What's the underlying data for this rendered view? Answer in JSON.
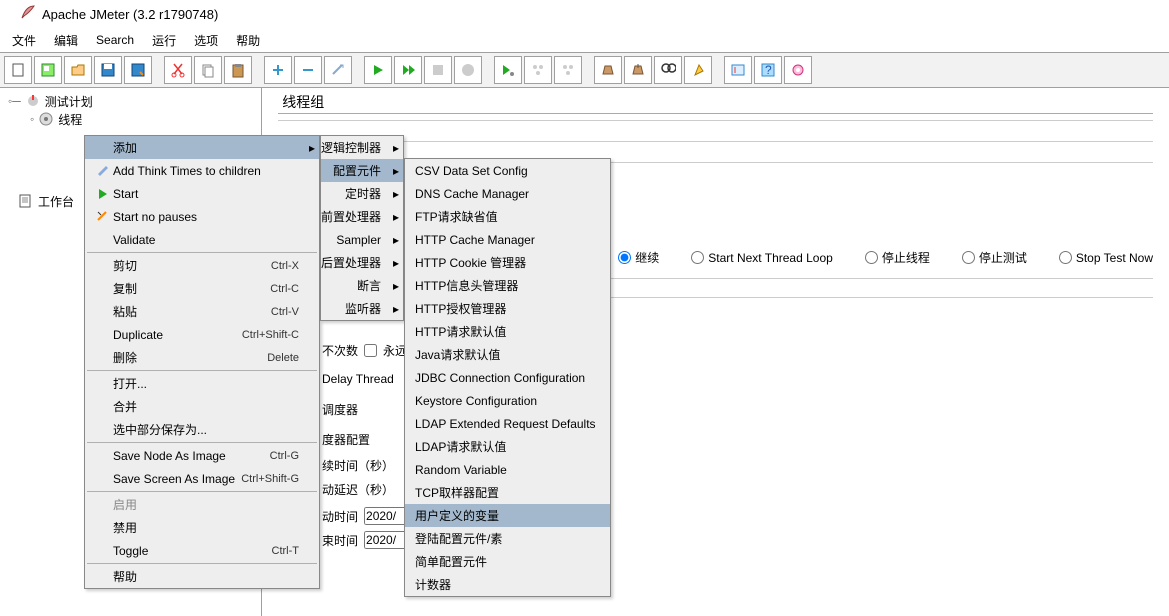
{
  "title": "Apache JMeter (3.2 r1790748)",
  "menubar": [
    "文件",
    "编辑",
    "Search",
    "运行",
    "选项",
    "帮助"
  ],
  "tree": {
    "root": "测试计划",
    "thread": "线程",
    "workbench": "工作台"
  },
  "panel": {
    "title": "线程组",
    "radios": [
      "继续",
      "Start Next Thread Loop",
      "停止线程",
      "停止测试",
      "Stop Test Now"
    ],
    "delayThread": "Delay Thread",
    "scheduler": "调度器",
    "schedCfg": "度器配置",
    "durSec": "续时间（秒）",
    "delaySec": "动延迟（秒）",
    "startTime": "动时间",
    "endTime": "束时间",
    "loopCount": "不次数",
    "loopForever": "永远",
    "timeVal": "2020/"
  },
  "ctx1": {
    "add": "添加",
    "addThink": "Add Think Times to children",
    "start": "Start",
    "startNoPause": "Start no pauses",
    "validate": "Validate",
    "cut": "剪切",
    "cutK": "Ctrl-X",
    "copy": "复制",
    "copyK": "Ctrl-C",
    "paste": "粘贴",
    "pasteK": "Ctrl-V",
    "dup": "Duplicate",
    "dupK": "Ctrl+Shift-C",
    "del": "删除",
    "delK": "Delete",
    "open": "打开...",
    "merge": "合并",
    "saveSel": "选中部分保存为...",
    "saveNode": "Save Node As Image",
    "saveNodeK": "Ctrl-G",
    "saveScr": "Save Screen As Image",
    "saveScrK": "Ctrl+Shift-G",
    "enable": "启用",
    "disable": "禁用",
    "toggle": "Toggle",
    "toggleK": "Ctrl-T",
    "help": "帮助"
  },
  "ctx2": {
    "logic": "逻辑控制器",
    "config": "配置元件",
    "timer": "定时器",
    "pre": "前置处理器",
    "sampler": "Sampler",
    "post": "后置处理器",
    "assert": "断言",
    "listener": "监听器"
  },
  "ctx3": [
    "CSV Data Set Config",
    "DNS Cache Manager",
    "FTP请求缺省值",
    "HTTP Cache Manager",
    "HTTP Cookie 管理器",
    "HTTP信息头管理器",
    "HTTP授权管理器",
    "HTTP请求默认值",
    "Java请求默认值",
    "JDBC Connection Configuration",
    "Keystore Configuration",
    "LDAP Extended Request Defaults",
    "LDAP请求默认值",
    "Random Variable",
    "TCP取样器配置",
    "用户定义的变量",
    "登陆配置元件/素",
    "简单配置元件",
    "计数器"
  ],
  "ctx3_hi": 15,
  "colors": {
    "hover": "#a3b8cc",
    "border": "#888888"
  }
}
